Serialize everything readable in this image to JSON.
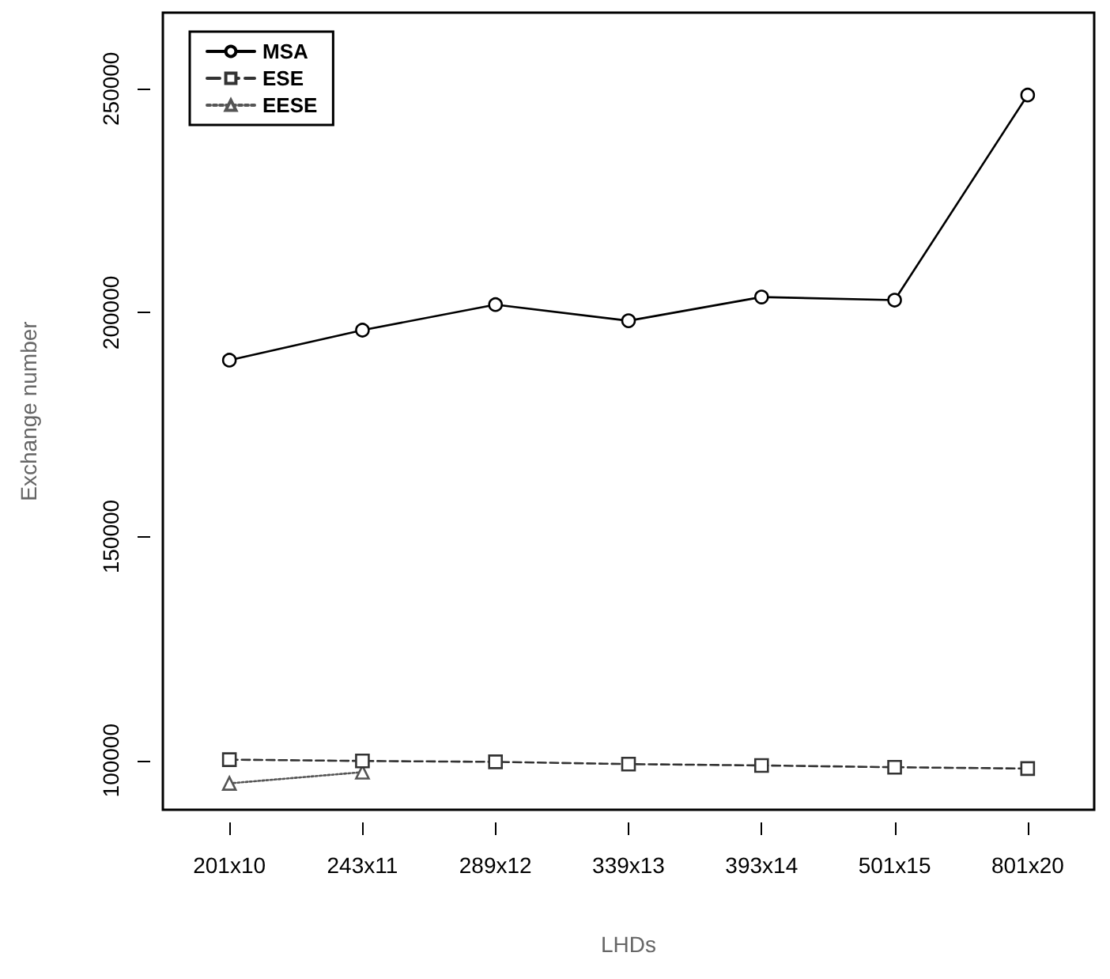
{
  "chart_data": {
    "type": "line",
    "xlabel": "LHDs",
    "ylabel": "Exchange number",
    "categories": [
      "201x10",
      "243x11",
      "289x12",
      "339x13",
      "393x14",
      "501x15",
      "801x20"
    ],
    "series": [
      {
        "name": "MSA",
        "color": "#000000",
        "marker": "circle",
        "line_style": "solid",
        "values": [
          189400,
          196100,
          201800,
          198200,
          203500,
          202800,
          248600
        ]
      },
      {
        "name": "ESE",
        "color": "#333333",
        "marker": "square",
        "line_style": "dashed",
        "values": [
          100200,
          99900,
          99700,
          99200,
          98900,
          98500,
          98200
        ]
      },
      {
        "name": "EESE",
        "color": "#555555",
        "marker": "triangle",
        "line_style": "dotted",
        "values": [
          94900,
          97400,
          null,
          null,
          null,
          null,
          null
        ]
      }
    ],
    "ylim": [
      89000,
      267000
    ],
    "yticks": [
      100000,
      150000,
      200000,
      250000
    ],
    "grid": false,
    "legend": "top left"
  }
}
